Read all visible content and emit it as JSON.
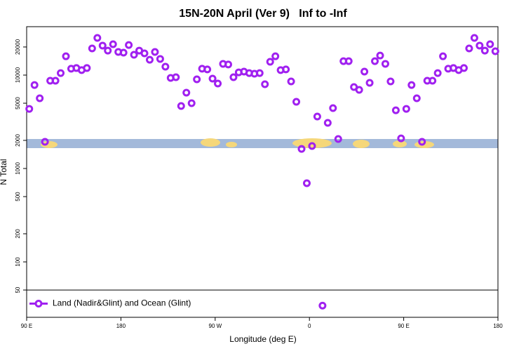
{
  "chart_data": {
    "type": "scatter",
    "title": "15N-20N April (Ver 9)   Inf to -Inf",
    "x_label": "Longitude (deg E)",
    "y_label": "N Total",
    "xlim": [
      90,
      540
    ],
    "xticks": [
      {
        "value": 90,
        "label": "90 E"
      },
      180,
      {
        "value": 270,
        "label": "90 W"
      },
      {
        "value": 360,
        "label": "0"
      },
      {
        "value": 450,
        "label": "90 E"
      },
      {
        "value": 540,
        "label": "180"
      }
    ],
    "ylim": [
      25.5,
      33000
    ],
    "yticks": [
      50,
      100,
      200,
      500,
      1000,
      2000,
      5000,
      10000,
      20000
    ],
    "y_log": true,
    "grid": false,
    "legend": "bottom-left",
    "x": [
      92.5,
      97.5,
      102.5,
      107.5,
      112.5,
      117.5,
      122.5,
      127.5,
      132.5,
      137.5,
      142.5,
      147.5,
      152.5,
      157.5,
      162.5,
      167.5,
      172.5,
      177.5,
      182.5,
      187.5,
      192.5,
      197.5,
      202.5,
      207.5,
      212.5,
      217.5,
      222.5,
      227.5,
      232.5,
      237.5,
      242.5,
      247.5,
      252.5,
      257.5,
      262.5,
      267.5,
      272.5,
      277.5,
      282.5,
      287.5,
      292.5,
      297.5,
      302.5,
      307.5,
      312.5,
      317.5,
      322.5,
      327.5,
      332.5,
      337.5,
      342.5,
      347.5,
      352.5,
      357.5,
      362.5,
      367.5,
      372.5,
      377.5,
      382.5,
      387.5,
      392.5,
      397.5,
      402.5,
      407.5,
      412.5,
      417.5,
      422.5,
      427.5,
      432.5,
      437.5,
      442.5,
      447.5,
      452.5,
      457.5,
      462.5,
      467.5,
      472.5,
      477.5,
      482.5,
      487.5,
      492.5,
      497.5,
      502.5,
      507.5,
      512.5,
      517.5,
      522.5,
      527.5,
      532.5,
      537.5
    ],
    "series": [
      {
        "name": "Land (Nadir&Glint) and Ocean (Glint)",
        "color": "#a020f0",
        "values": [
          4350,
          7830,
          5650,
          1930,
          8710,
          8710,
          10500,
          15900,
          11700,
          11900,
          11300,
          11900,
          19300,
          25000,
          20700,
          18300,
          21400,
          17700,
          17400,
          21000,
          16500,
          18300,
          17100,
          14600,
          17700,
          14900,
          12300,
          9330,
          9490,
          4670,
          6490,
          5000,
          9010,
          11700,
          11500,
          9170,
          8120,
          13200,
          13000,
          9490,
          10700,
          10900,
          10500,
          10350,
          10500,
          7980,
          13900,
          15900,
          11300,
          11500,
          8550,
          5180,
          1620,
          695,
          1740,
          3600,
          34,
          3080,
          4430,
          2070,
          14100,
          14100,
          7450,
          6950,
          10900,
          8260,
          14100,
          16200,
          13200,
          8550,
          4200,
          2100,
          4350,
          7830,
          5650,
          1930,
          8710,
          8710,
          10500,
          15900,
          11700,
          11900,
          11300,
          11900,
          19300,
          25000,
          20700,
          18300,
          21400,
          18000
        ]
      }
    ]
  }
}
